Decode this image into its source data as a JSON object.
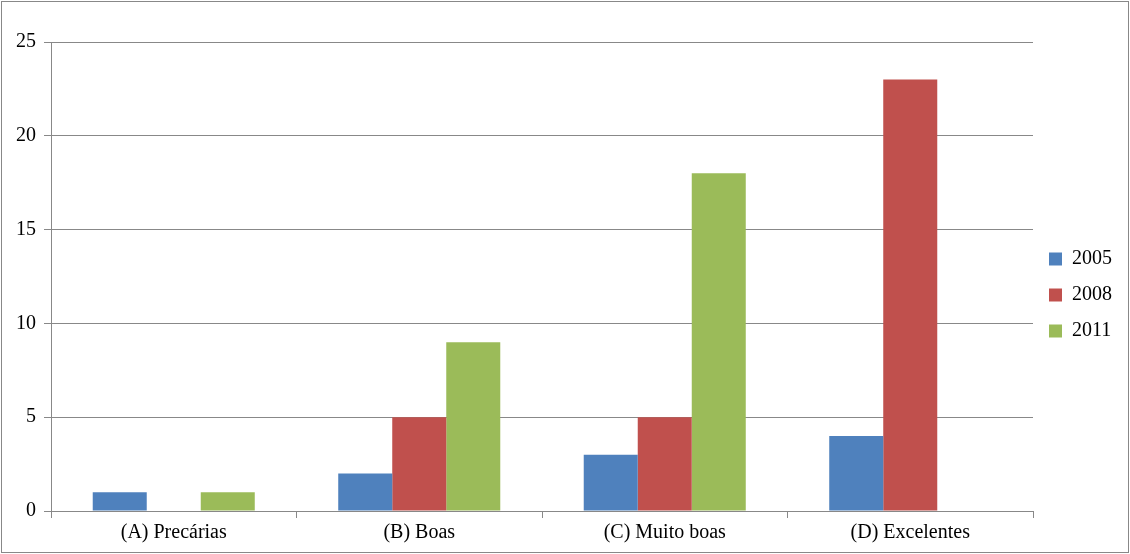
{
  "chart_data": {
    "type": "bar",
    "categories": [
      "(A) Precárias",
      "(B) Boas",
      "(C) Muito boas",
      "(D) Excelentes"
    ],
    "series": [
      {
        "name": "2005",
        "color": "#4f81bd",
        "values": [
          1,
          2,
          3,
          4
        ]
      },
      {
        "name": "2008",
        "color": "#c0504d",
        "values": [
          0,
          5,
          5,
          23
        ]
      },
      {
        "name": "2011",
        "color": "#9bbb59",
        "values": [
          1,
          9,
          18,
          0
        ]
      }
    ],
    "ylim": [
      0,
      25
    ],
    "yticks": [
      0,
      5,
      10,
      15,
      20,
      25
    ],
    "grid": "y",
    "legend": "right"
  }
}
